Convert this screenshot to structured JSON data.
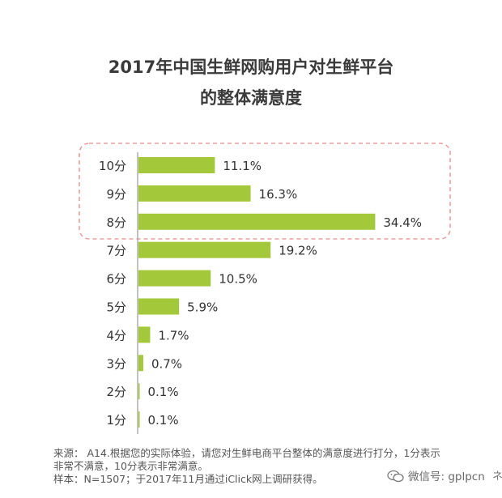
{
  "chart_data": {
    "type": "bar",
    "orientation": "horizontal",
    "title_line1": "2017年中国生鲜网购用户对生鲜平台",
    "title_line2": "的整体满意度",
    "categories": [
      "10分",
      "9分",
      "8分",
      "7分",
      "6分",
      "5分",
      "4分",
      "3分",
      "2分",
      "1分"
    ],
    "values": [
      11.1,
      16.3,
      34.4,
      19.2,
      10.5,
      5.9,
      1.7,
      0.7,
      0.1,
      0.1
    ],
    "value_labels": [
      "11.1%",
      "16.3%",
      "34.4%",
      "19.2%",
      "10.5%",
      "5.9%",
      "1.7%",
      "0.7%",
      "0.1%",
      "0.1%"
    ],
    "highlighted_categories": [
      "10分",
      "9分",
      "8分"
    ],
    "xlim": [
      0,
      40
    ],
    "grid": false,
    "colors": {
      "bar": "#a3c93a",
      "highlight_border": "#e8a0a0",
      "axis": "#9a9a9a"
    }
  },
  "footnote": {
    "line1": "来源： A14.根据您的实际体验，请您对生鲜电商平台整体的满意度进行打分，1分表示",
    "line2": "非常不满意，10分表示非常满意。",
    "line3": "样本：N=1507；于2017年11月通过iClick网上调研获得。"
  },
  "watermark": {
    "text": "微信号: gplpcn",
    "icon": "wechat-icon"
  },
  "edge_glyph": "ネ"
}
